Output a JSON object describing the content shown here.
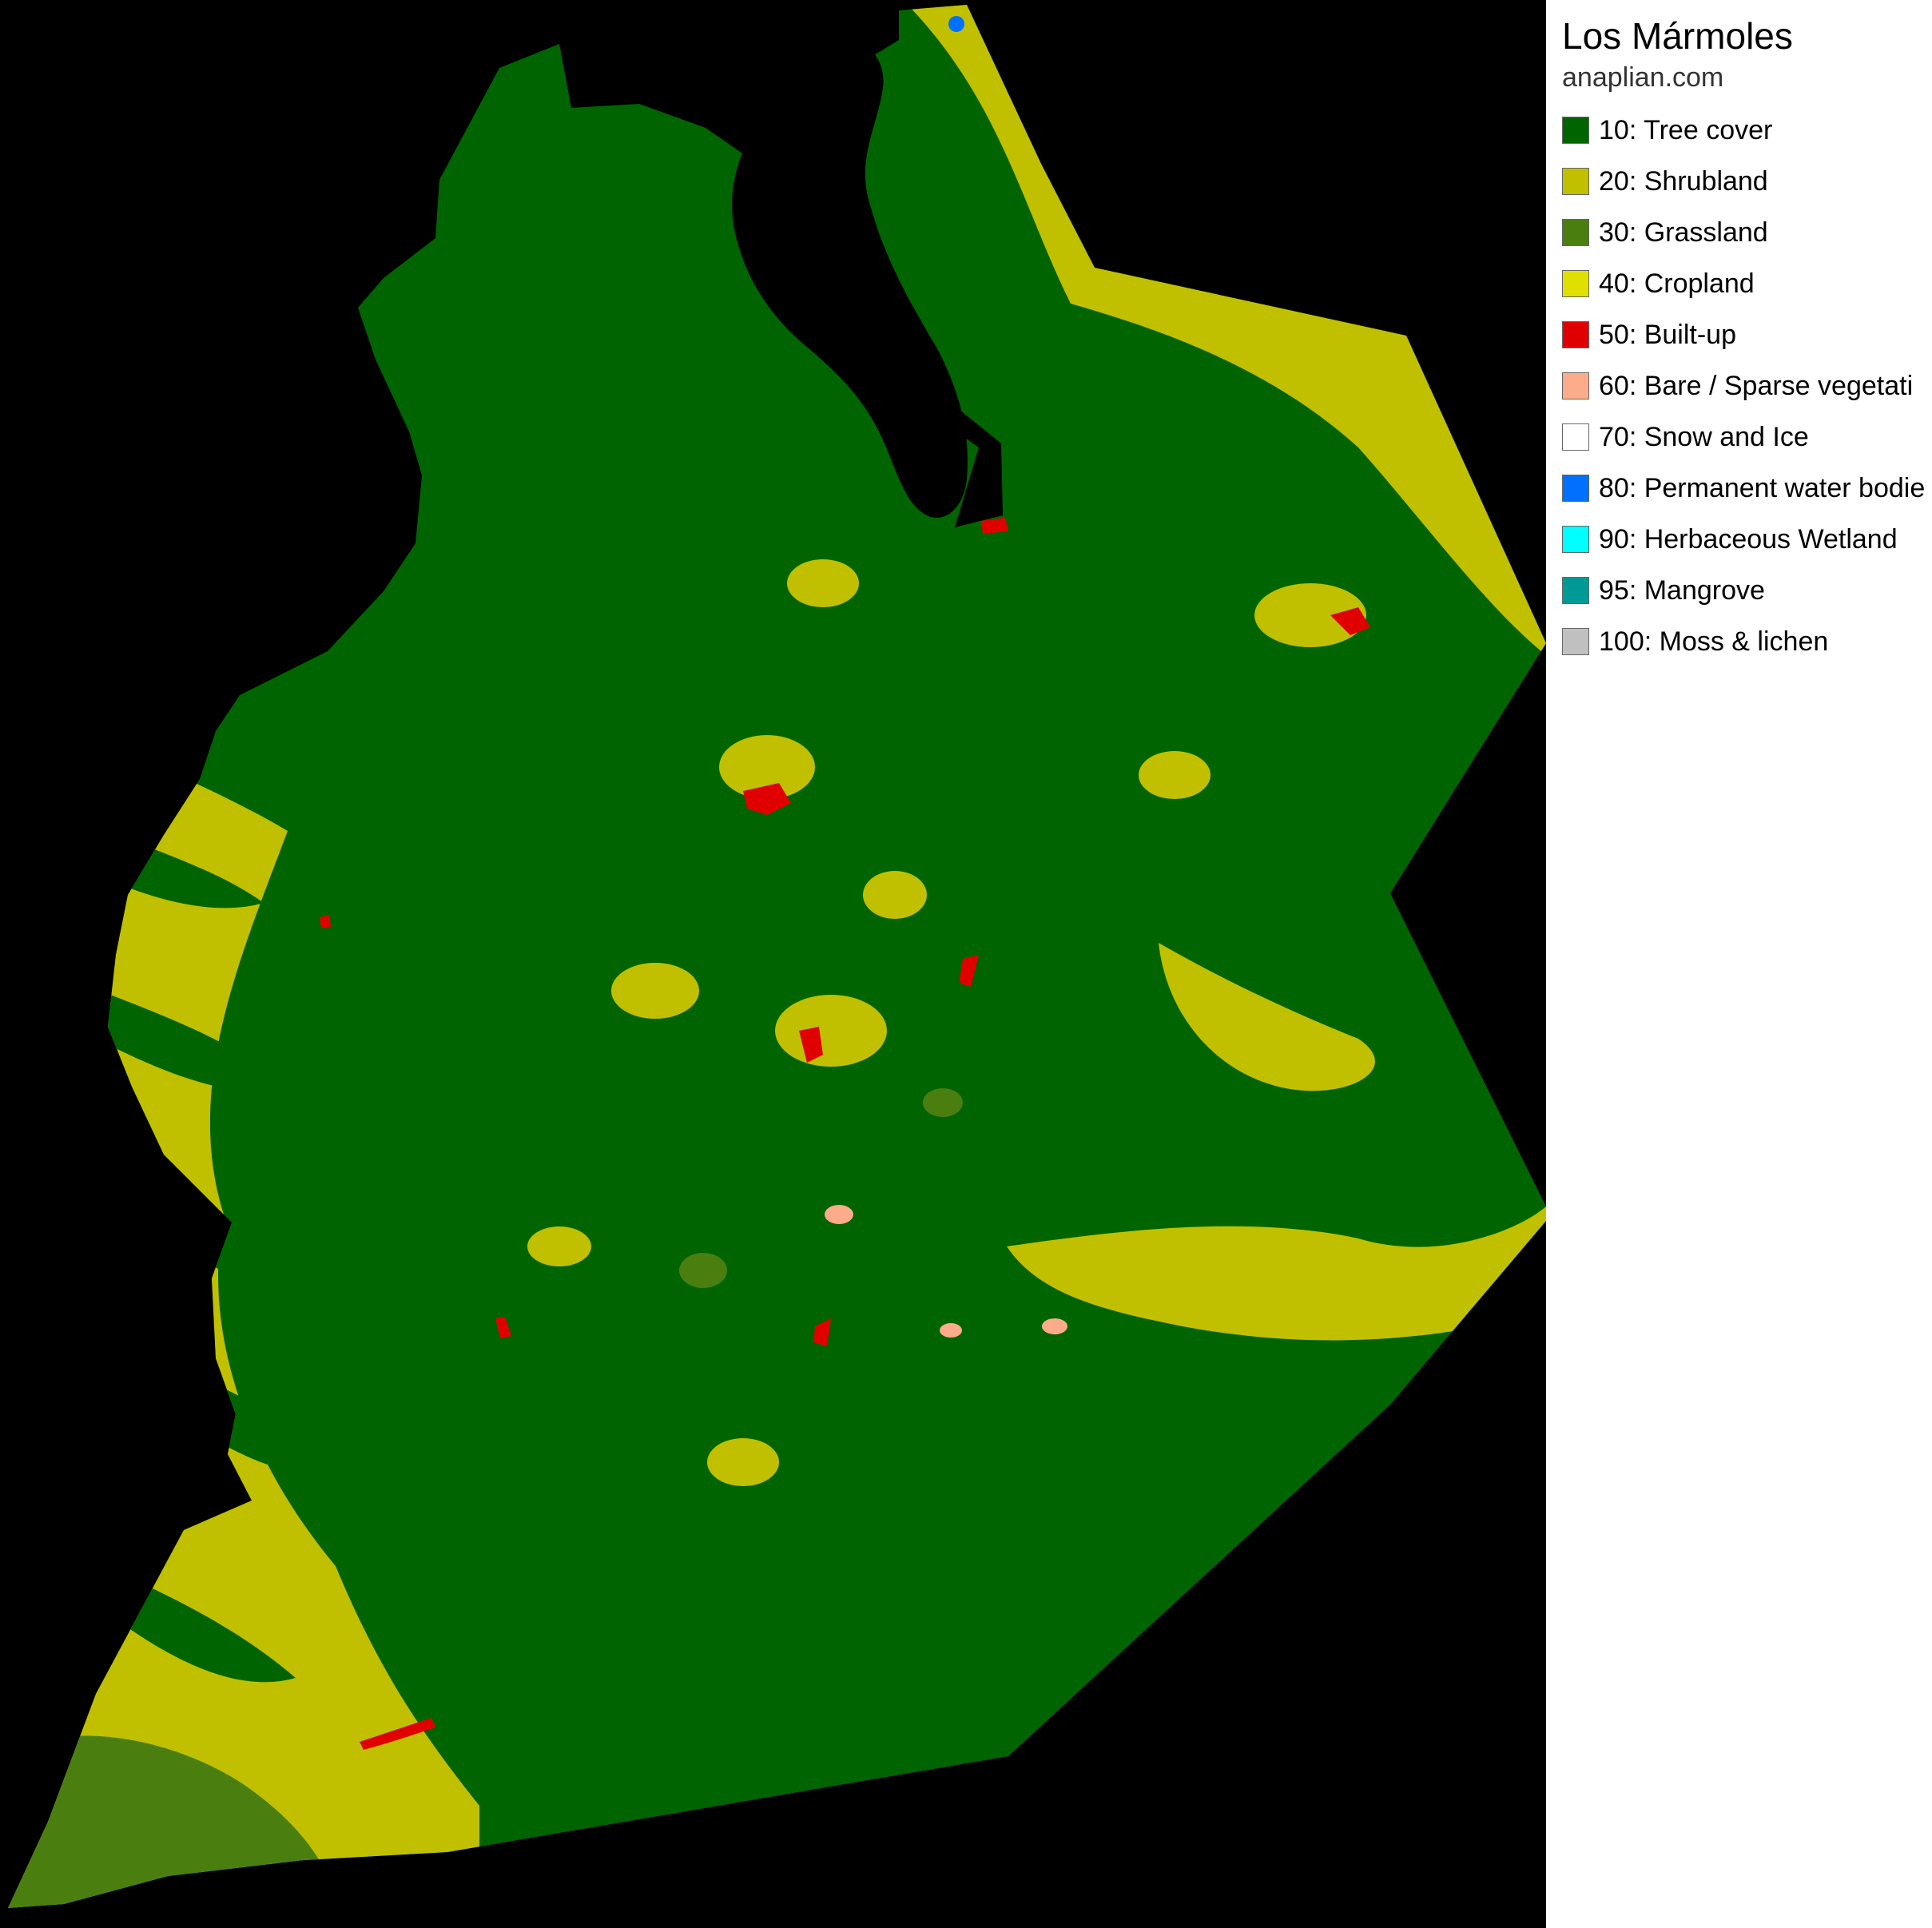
{
  "map": {
    "title": "Los Mármoles",
    "source": "anaplian.com",
    "legend": [
      {
        "label": "10: Tree cover",
        "color": "#006400"
      },
      {
        "label": "20: Shrubland",
        "color": "#c0c000"
      },
      {
        "label": "30: Grassland",
        "color": "#4a7f10"
      },
      {
        "label": "40: Cropland",
        "color": "#e0e000"
      },
      {
        "label": "50: Built-up",
        "color": "#e00000"
      },
      {
        "label": "60: Bare / Sparse vegetati",
        "color": "#fcac8a"
      },
      {
        "label": "70: Snow and Ice",
        "color": "#ffffff"
      },
      {
        "label": "80: Permanent water bodie",
        "color": "#0070ff"
      },
      {
        "label": "90: Herbaceous Wetland",
        "color": "#00ffff"
      },
      {
        "label": "95: Mangrove",
        "color": "#009a96"
      },
      {
        "label": "100: Moss & lichen",
        "color": "#c0c0c0"
      }
    ]
  }
}
